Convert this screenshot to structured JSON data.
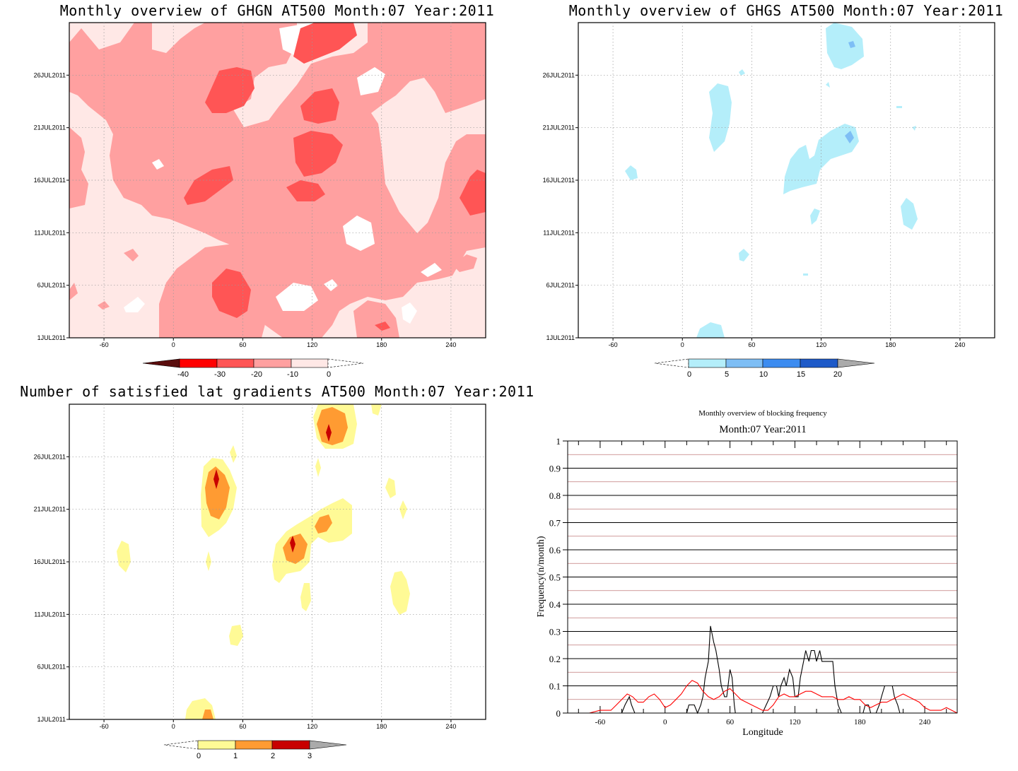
{
  "panels": {
    "ghgn": {
      "title": "Monthly overview of GHGN AT500 Month:07 Year:2011",
      "x_ticks": [
        "-60",
        "0",
        "60",
        "120",
        "180",
        "240"
      ],
      "y_ticks": [
        "1JUL2011",
        "6JUL2011",
        "11JUL2011",
        "16JUL2011",
        "21JUL2011",
        "26JUL2011"
      ],
      "colorbar": {
        "ticks": [
          "-40",
          "-30",
          "-20",
          "-10",
          "0"
        ],
        "colors": [
          "#5a0d0d",
          "#ff0000",
          "#ff5555",
          "#ffa0a0",
          "#ffe8e6"
        ]
      },
      "background": "#ffe8e6"
    },
    "ghgs": {
      "title": "Monthly overview of GHGS AT500 Month:07 Year:2011",
      "x_ticks": [
        "-60",
        "0",
        "60",
        "120",
        "180",
        "240"
      ],
      "y_ticks": [
        "1JUL2011",
        "6JUL2011",
        "11JUL2011",
        "16JUL2011",
        "21JUL2011",
        "26JUL2011"
      ],
      "colorbar": {
        "ticks": [
          "0",
          "5",
          "10",
          "15",
          "20"
        ],
        "colors": [
          "#b4eefa",
          "#7ebef5",
          "#3c8cf0",
          "#1e5ac8",
          "#aaaaaa"
        ]
      }
    },
    "gradients": {
      "title": "Number of satisfied lat gradients AT500 Month:07 Year:2011",
      "x_ticks": [
        "-60",
        "0",
        "60",
        "120",
        "180",
        "240"
      ],
      "y_ticks": [
        "1JUL2011",
        "6JUL2011",
        "11JUL2011",
        "16JUL2011",
        "21JUL2011",
        "26JUL2011"
      ],
      "colorbar": {
        "ticks": [
          "0",
          "1",
          "2",
          "3"
        ],
        "colors": [
          "#fffa96",
          "#ff9b32",
          "#c80000",
          "#aaaaaa"
        ]
      }
    }
  },
  "chart_data": {
    "type": "line",
    "title": "Monthly overview of blocking frequency",
    "subtitle": "Month:07 Year:2011",
    "xlabel": "Longitude",
    "ylabel": "Frequency(n/month)",
    "xlim": [
      -90,
      270
    ],
    "ylim": [
      0,
      1
    ],
    "x_ticks": [
      -60,
      0,
      60,
      120,
      180,
      240
    ],
    "y_ticks": [
      0,
      0.1,
      0.2,
      0.3,
      0.4,
      0.5,
      0.6,
      0.7,
      0.8,
      0.9,
      1
    ],
    "series": [
      {
        "color": "#000000",
        "x": [
          -90,
          -40,
          -37,
          -33,
          -31,
          -28,
          0,
          20,
          22,
          25,
          27,
          30,
          33,
          35,
          37,
          40,
          42,
          45,
          47,
          50,
          52,
          55,
          57,
          60,
          62,
          64,
          65,
          90,
          97,
          100,
          103,
          105,
          107,
          110,
          112,
          115,
          118,
          120,
          123,
          125,
          128,
          130,
          133,
          135,
          138,
          140,
          143,
          145,
          148,
          150,
          152,
          155,
          157,
          160,
          163,
          165,
          168,
          170,
          173,
          175,
          180,
          183,
          185,
          188,
          190,
          193,
          195,
          198,
          200,
          203,
          205,
          208,
          210,
          212,
          215,
          217,
          220,
          270
        ],
        "y": [
          0,
          0,
          0.03,
          0.06,
          0.03,
          0,
          0,
          0,
          0.03,
          0.03,
          0.03,
          0,
          0.03,
          0.06,
          0.13,
          0.19,
          0.32,
          0.26,
          0.23,
          0.16,
          0.1,
          0.06,
          0.06,
          0.16,
          0.13,
          0.03,
          0,
          0,
          0.06,
          0.1,
          0.1,
          0.06,
          0.1,
          0.13,
          0.1,
          0.16,
          0.13,
          0.06,
          0.06,
          0.13,
          0.19,
          0.23,
          0.19,
          0.23,
          0.23,
          0.19,
          0.23,
          0.19,
          0.19,
          0.19,
          0.19,
          0.19,
          0.1,
          0.03,
          0,
          0,
          0,
          0,
          0,
          0,
          0,
          0,
          0.03,
          0.03,
          0,
          0,
          0,
          0.03,
          0.06,
          0.1,
          0.1,
          0.1,
          0.1,
          0.06,
          0.03,
          0,
          0,
          0
        ]
      },
      {
        "color": "#ff0000",
        "x": [
          -90,
          -70,
          -60,
          -50,
          -45,
          -40,
          -35,
          -30,
          -25,
          -20,
          -15,
          -10,
          -5,
          0,
          5,
          10,
          15,
          20,
          25,
          30,
          35,
          40,
          45,
          50,
          55,
          60,
          65,
          70,
          75,
          80,
          85,
          90,
          95,
          100,
          105,
          110,
          115,
          120,
          125,
          130,
          135,
          140,
          145,
          150,
          155,
          160,
          165,
          170,
          175,
          180,
          185,
          190,
          195,
          200,
          205,
          210,
          215,
          220,
          225,
          230,
          235,
          240,
          245,
          250,
          255,
          260,
          265,
          270
        ],
        "y": [
          0,
          0,
          0.01,
          0.01,
          0.03,
          0.05,
          0.07,
          0.06,
          0.04,
          0.04,
          0.06,
          0.07,
          0.05,
          0.02,
          0.03,
          0.05,
          0.07,
          0.1,
          0.12,
          0.11,
          0.08,
          0.06,
          0.05,
          0.06,
          0.08,
          0.09,
          0.07,
          0.05,
          0.04,
          0.03,
          0.02,
          0.01,
          0.01,
          0.03,
          0.06,
          0.07,
          0.06,
          0.06,
          0.07,
          0.08,
          0.08,
          0.07,
          0.06,
          0.06,
          0.06,
          0.05,
          0.05,
          0.06,
          0.05,
          0.05,
          0.03,
          0.02,
          0.03,
          0.04,
          0.04,
          0.05,
          0.06,
          0.07,
          0.06,
          0.05,
          0.04,
          0.02,
          0.01,
          0.01,
          0.01,
          0.02,
          0.01,
          0
        ]
      }
    ]
  }
}
